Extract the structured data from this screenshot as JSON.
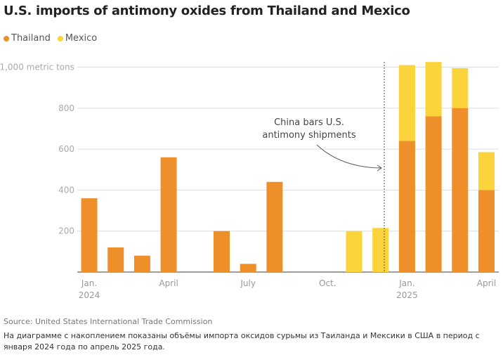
{
  "chart_data": {
    "type": "bar",
    "stacked": true,
    "title": "U.S. imports of antimony oxides from Thailand and Mexico",
    "ylabel_unit": "metric tons",
    "ylim": [
      0,
      1000
    ],
    "yticks": [
      200,
      400,
      600,
      800,
      1000
    ],
    "ytick_labels": [
      "200",
      "400",
      "600",
      "800",
      "1,000 metric tons"
    ],
    "grid": true,
    "legend_placement": "top-left",
    "categories": [
      "2024-01",
      "2024-02",
      "2024-03",
      "2024-04",
      "2024-05",
      "2024-06",
      "2024-07",
      "2024-08",
      "2024-09",
      "2024-10",
      "2024-11",
      "2024-12",
      "2025-01",
      "2025-02",
      "2025-03",
      "2025-04"
    ],
    "xtick_labels": [
      {
        "month": "2024-01",
        "line1": "Jan.",
        "line2": "2024"
      },
      {
        "month": "2024-04",
        "line1": "April",
        "line2": ""
      },
      {
        "month": "2024-07",
        "line1": "July",
        "line2": ""
      },
      {
        "month": "2024-10",
        "line1": "Oct.",
        "line2": ""
      },
      {
        "month": "2025-01",
        "line1": "Jan.",
        "line2": "2025"
      },
      {
        "month": "2025-04",
        "line1": "April",
        "line2": ""
      }
    ],
    "series": [
      {
        "name": "Thailand",
        "color": "#ee8f2a",
        "values": [
          360,
          120,
          80,
          560,
          0,
          200,
          40,
          440,
          0,
          0,
          0,
          0,
          640,
          760,
          800,
          400
        ]
      },
      {
        "name": "Mexico",
        "color": "#fbd33b",
        "values": [
          0,
          0,
          0,
          0,
          0,
          0,
          0,
          0,
          0,
          0,
          200,
          215,
          370,
          265,
          195,
          185
        ]
      }
    ],
    "annotation": {
      "line1": "China bars U.S.",
      "line2": "antimony shipments",
      "month": "2024-12"
    }
  },
  "source": "Source: United States International Trade Commission",
  "caption": "На диаграмме с накоплением показаны объёмы импорта оксидов сурьмы из Таиланда и Мексики в США в период с января 2024 года по апрель 2025 года."
}
